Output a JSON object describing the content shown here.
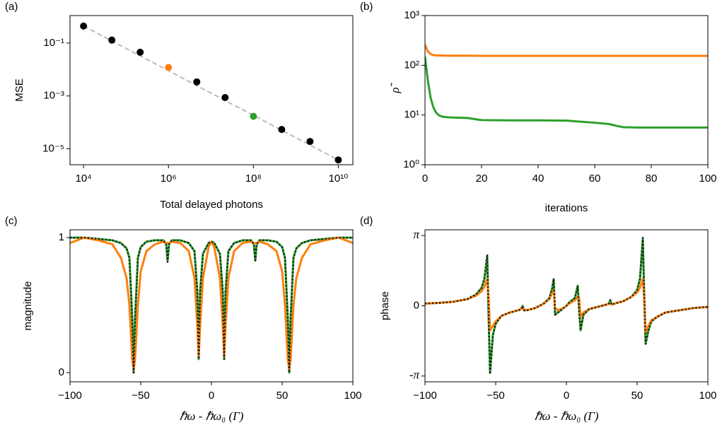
{
  "chart_data": [
    {
      "type": "scatter",
      "label": "(a)",
      "xlabel": "Total delayed photons",
      "ylabel": "MSE",
      "xscale": "log",
      "yscale": "log",
      "xlim": [
        4800,
        22000000000
      ],
      "ylim": [
        2.5e-06,
        1.1
      ],
      "xticks": [
        {
          "value": 10000,
          "label": "10⁴"
        },
        {
          "value": 1000000,
          "label": "10⁶"
        },
        {
          "value": 100000000,
          "label": "10⁸"
        },
        {
          "value": 10000000000,
          "label": "10¹⁰"
        }
      ],
      "yticks": [
        {
          "value": 0.1,
          "label": "10⁻¹"
        },
        {
          "value": 0.001,
          "label": "10⁻³"
        },
        {
          "value": 1e-05,
          "label": "10⁻⁵"
        }
      ],
      "series": [
        {
          "mode": "line",
          "dash": "dashed",
          "color": "#bbbbbb",
          "x": [
            10000,
            10000000000
          ],
          "values": [
            0.44,
            3.8e-06
          ]
        },
        {
          "mode": "markers",
          "color": "#000000",
          "x": [
            10000,
            46416,
            215443,
            4641589,
            21544347,
            464158883,
            2154434690,
            10000000000
          ],
          "values": [
            0.44,
            0.13,
            0.045,
            0.0034,
            0.00087,
            5.4e-05,
            1.9e-05,
            3.8e-06
          ]
        },
        {
          "mode": "markers",
          "color": "#ff7f0e",
          "x": [
            1000000
          ],
          "values": [
            0.012
          ]
        },
        {
          "mode": "markers",
          "color": "#2ca02c",
          "x": [
            100000000
          ],
          "values": [
            0.00017
          ]
        }
      ]
    },
    {
      "type": "line",
      "label": "(b)",
      "xlabel": "iterations",
      "ylabel": "ρ̃",
      "xscale": "linear",
      "yscale": "log",
      "xlim": [
        0,
        100
      ],
      "ylim": [
        1,
        1000
      ],
      "xticks": [
        0,
        20,
        40,
        60,
        80,
        100
      ],
      "yticks": [
        {
          "value": 1,
          "label": "10⁰"
        },
        {
          "value": 10,
          "label": "10¹"
        },
        {
          "value": 100,
          "label": "10²"
        },
        {
          "value": 1000,
          "label": "10³"
        }
      ],
      "x": [
        0,
        1,
        2,
        3,
        4,
        5,
        6,
        8,
        10,
        15,
        20,
        30,
        40,
        50,
        60,
        65,
        68,
        70,
        75,
        80,
        90,
        100
      ],
      "series": [
        {
          "color": "#ff7f0e",
          "values": [
            260,
            190,
            168,
            160,
            158,
            157,
            157,
            156,
            156,
            156,
            155,
            155,
            155,
            155,
            155,
            155,
            155,
            155,
            155,
            155,
            155,
            155
          ]
        },
        {
          "color": "#2ca02c",
          "values": [
            150,
            50,
            22,
            14,
            11,
            9.8,
            9.3,
            9.0,
            8.9,
            8.7,
            7.9,
            7.8,
            7.8,
            7.7,
            7.0,
            6.6,
            6.0,
            5.7,
            5.6,
            5.6,
            5.6,
            5.6
          ]
        }
      ]
    },
    {
      "type": "line",
      "label": "(c)",
      "xlabel": "ℏω - ℏω₀ (Γ)",
      "ylabel": "magnitude",
      "xscale": "linear",
      "yscale": "linear",
      "xlim": [
        -100,
        100
      ],
      "ylim": [
        -0.068,
        1.058
      ],
      "xticks": [
        {
          "value": -100,
          "label": "−100"
        },
        {
          "value": -50,
          "label": "−50"
        },
        0,
        50,
        100
      ],
      "yticks": [
        0,
        1
      ],
      "x": [
        -100,
        -90,
        -80,
        -70,
        -64,
        -60,
        -58,
        -56,
        -55,
        -54,
        -52,
        -50,
        -46,
        -40,
        -34,
        -32,
        -31,
        -30,
        -28,
        -22,
        -16,
        -12,
        -10,
        -9,
        -8,
        -6,
        -2,
        0,
        2,
        6,
        8,
        9,
        10,
        12,
        16,
        22,
        28,
        30,
        31,
        32,
        34,
        40,
        46,
        50,
        52,
        54,
        55,
        56,
        58,
        60,
        64,
        70,
        80,
        90,
        100
      ],
      "series": [
        {
          "color": "#2ca02c",
          "values": [
            1.0,
            1.0,
            0.99,
            0.98,
            0.96,
            0.92,
            0.85,
            0.4,
            0.0,
            0.4,
            0.85,
            0.93,
            0.97,
            0.98,
            0.98,
            0.95,
            0.83,
            0.95,
            0.98,
            0.98,
            0.96,
            0.9,
            0.6,
            0.1,
            0.6,
            0.88,
            0.96,
            0.97,
            0.96,
            0.88,
            0.6,
            0.1,
            0.6,
            0.9,
            0.96,
            0.98,
            0.98,
            0.95,
            0.83,
            0.95,
            0.98,
            0.98,
            0.97,
            0.93,
            0.85,
            0.4,
            0.0,
            0.4,
            0.85,
            0.92,
            0.96,
            0.98,
            0.99,
            1.0,
            1.0
          ]
        },
        {
          "color": "#ff7f0e",
          "values": [
            0.96,
            1.0,
            0.98,
            0.95,
            0.85,
            0.7,
            0.5,
            0.1,
            0.02,
            0.1,
            0.5,
            0.75,
            0.9,
            0.95,
            0.97,
            0.96,
            0.96,
            0.96,
            0.97,
            0.96,
            0.9,
            0.7,
            0.35,
            0.12,
            0.35,
            0.7,
            0.93,
            0.97,
            0.93,
            0.7,
            0.35,
            0.12,
            0.35,
            0.7,
            0.9,
            0.96,
            0.97,
            0.96,
            0.96,
            0.96,
            0.97,
            0.95,
            0.9,
            0.75,
            0.5,
            0.1,
            0.02,
            0.1,
            0.5,
            0.7,
            0.85,
            0.95,
            0.98,
            1.0,
            0.96
          ]
        },
        {
          "color": "#1a1a1a",
          "dash": "dotted",
          "values": [
            1.0,
            1.0,
            0.99,
            0.98,
            0.96,
            0.92,
            0.85,
            0.4,
            0.0,
            0.4,
            0.85,
            0.93,
            0.97,
            0.98,
            0.98,
            0.95,
            0.82,
            0.95,
            0.98,
            0.98,
            0.96,
            0.9,
            0.6,
            0.1,
            0.6,
            0.88,
            0.96,
            0.97,
            0.96,
            0.88,
            0.6,
            0.1,
            0.6,
            0.9,
            0.96,
            0.98,
            0.98,
            0.95,
            0.82,
            0.95,
            0.98,
            0.98,
            0.97,
            0.93,
            0.85,
            0.4,
            0.0,
            0.4,
            0.85,
            0.92,
            0.96,
            0.98,
            0.99,
            1.0,
            1.0
          ]
        }
      ]
    },
    {
      "type": "line",
      "label": "(d)",
      "xlabel": "ℏω - ℏω₀ (Γ)",
      "ylabel": "phase",
      "xscale": "linear",
      "yscale": "linear",
      "xlim": [
        -100,
        100
      ],
      "ylim": [
        -3.4,
        3.4
      ],
      "xticks": [
        {
          "value": -100,
          "label": "−100"
        },
        {
          "value": -50,
          "label": "−50"
        },
        0,
        50,
        100
      ],
      "yticks": [
        {
          "value": -3.14159,
          "label": "-π"
        },
        0,
        {
          "value": 3.14159,
          "label": "π"
        }
      ],
      "x": [
        -100,
        -90,
        -80,
        -70,
        -64,
        -60,
        -58,
        -56,
        -55,
        -54,
        -52,
        -50,
        -46,
        -40,
        -34,
        -32,
        -31,
        -30,
        -28,
        -22,
        -16,
        -12,
        -10,
        -9,
        -8,
        -6,
        -2,
        0,
        2,
        6,
        8,
        9,
        10,
        12,
        16,
        22,
        28,
        30,
        31,
        32,
        34,
        40,
        46,
        50,
        52,
        54,
        55,
        56,
        58,
        60,
        64,
        70,
        80,
        90,
        100
      ],
      "series": [
        {
          "color": "#2ca02c",
          "values": [
            0.1,
            0.13,
            0.18,
            0.3,
            0.5,
            0.8,
            1.2,
            2.2,
            -0.5,
            -3.0,
            -1.3,
            -0.8,
            -0.45,
            -0.3,
            -0.2,
            -0.15,
            0.0,
            -0.2,
            -0.2,
            -0.1,
            0.1,
            0.35,
            0.8,
            1.2,
            -0.4,
            -0.3,
            -0.1,
            0.0,
            0.15,
            0.35,
            0.9,
            -0.2,
            -1.1,
            -0.4,
            -0.15,
            -0.05,
            0.05,
            0.1,
            0.25,
            0.05,
            0.1,
            0.2,
            0.4,
            0.7,
            1.2,
            3.0,
            0.5,
            -1.7,
            -1.1,
            -0.7,
            -0.5,
            -0.3,
            -0.2,
            -0.1,
            -0.05
          ]
        },
        {
          "color": "#ff7f0e",
          "values": [
            0.1,
            0.13,
            0.18,
            0.3,
            0.45,
            0.65,
            0.85,
            1.2,
            0.3,
            -1.1,
            -0.9,
            -0.7,
            -0.45,
            -0.3,
            -0.2,
            -0.15,
            -0.05,
            -0.15,
            -0.2,
            -0.1,
            0.1,
            0.3,
            0.6,
            0.7,
            -0.1,
            -0.2,
            -0.1,
            0,
            0.1,
            0.25,
            0.4,
            0.35,
            -0.5,
            -0.3,
            -0.15,
            -0.05,
            0.05,
            0.1,
            0.1,
            0.05,
            0.1,
            0.2,
            0.4,
            0.6,
            0.8,
            1.2,
            0.3,
            -1.2,
            -0.9,
            -0.65,
            -0.5,
            -0.3,
            -0.2,
            -0.1,
            -0.05
          ]
        },
        {
          "color": "#1a1a1a",
          "dash": "dotted",
          "values": [
            0.1,
            0.13,
            0.18,
            0.3,
            0.5,
            0.8,
            1.2,
            2.3,
            -0.5,
            -3.05,
            -1.3,
            -0.8,
            -0.45,
            -0.3,
            -0.2,
            -0.15,
            0.0,
            -0.2,
            -0.2,
            -0.1,
            0.1,
            0.35,
            0.8,
            1.2,
            -0.4,
            -0.3,
            -0.1,
            0.0,
            0.15,
            0.35,
            0.9,
            -0.2,
            -1.1,
            -0.4,
            -0.15,
            -0.05,
            0.05,
            0.1,
            0.25,
            0.05,
            0.1,
            0.2,
            0.4,
            0.7,
            1.2,
            3.05,
            0.5,
            -1.7,
            -1.1,
            -0.7,
            -0.5,
            -0.3,
            -0.2,
            -0.1,
            -0.05
          ]
        }
      ]
    }
  ]
}
